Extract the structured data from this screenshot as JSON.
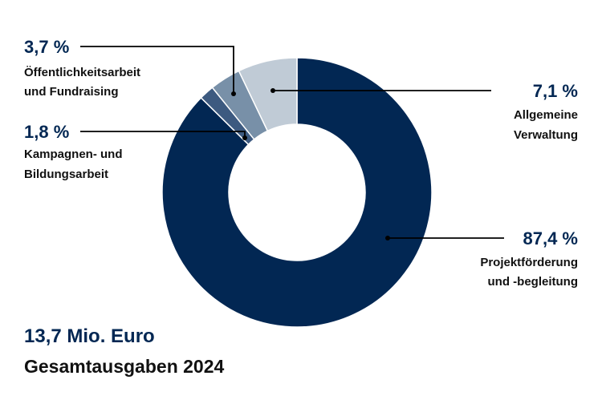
{
  "chart_data": {
    "type": "pie",
    "donut": true,
    "total_value": "13,7 Mio. Euro",
    "caption": "Gesamtausgaben 2024",
    "slices": [
      {
        "percent": 87.4,
        "percent_label": "87,4 %",
        "label_lines": [
          "Projektförderung",
          "und -begleitung"
        ],
        "color": "#022753"
      },
      {
        "percent": 1.8,
        "percent_label": "1,8 %",
        "label_lines": [
          "Kampagnen- und",
          "Bildungsarbeit"
        ],
        "color": "#3d5a80"
      },
      {
        "percent": 3.7,
        "percent_label": "3,7 %",
        "label_lines": [
          "Öffentlichkeitsarbeit",
          "und Fundraising"
        ],
        "color": "#7890a8"
      },
      {
        "percent": 7.1,
        "percent_label": "7,1 %",
        "label_lines": [
          "Allgemeine",
          "Verwaltung"
        ],
        "color": "#c0cbd6"
      }
    ]
  },
  "colors": {
    "accent_text": "#022753",
    "body_text": "#111111",
    "leader_line": "#000000"
  }
}
